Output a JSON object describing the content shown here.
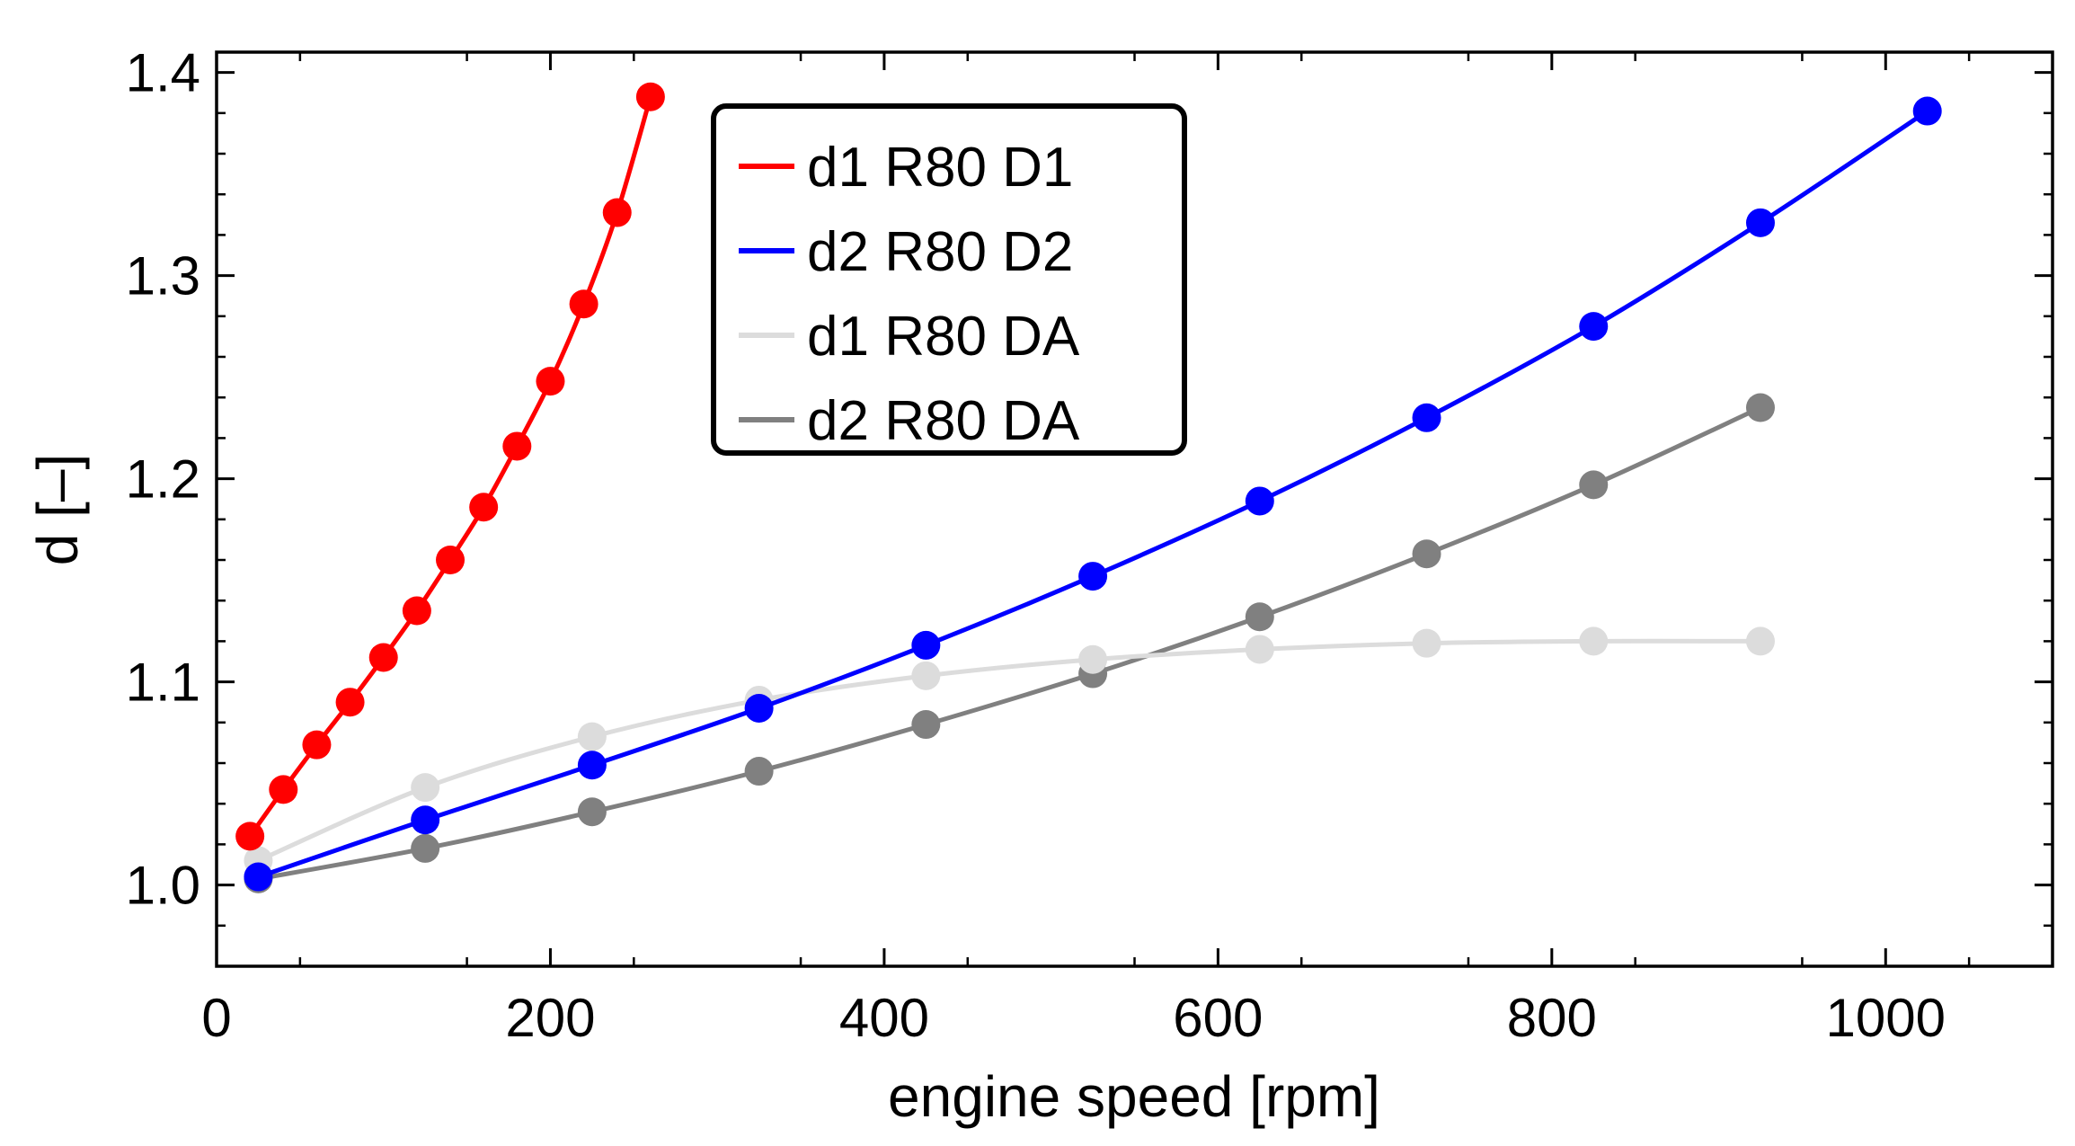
{
  "chart_data": {
    "type": "line",
    "title": "",
    "xlabel": "engine speed [rpm]",
    "ylabel": "d [–]",
    "xlim": [
      0,
      1100
    ],
    "ylim": [
      0.96,
      1.41
    ],
    "xticks": [
      0,
      200,
      400,
      600,
      800,
      1000
    ],
    "xtick_labels": [
      "0",
      "200",
      "400",
      "600",
      "800",
      "1000"
    ],
    "yticks": [
      1.0,
      1.1,
      1.2,
      1.3,
      1.4
    ],
    "ytick_labels": [
      "1.0",
      "1.1",
      "1.2",
      "1.3",
      "1.4"
    ],
    "grid": false,
    "legend_position": "top-center",
    "series": [
      {
        "name": "d1 R80 D1",
        "color": "#ff0000",
        "x": [
          20,
          40,
          60,
          80,
          100,
          120,
          140,
          160,
          180,
          200,
          220,
          240,
          260
        ],
        "y": [
          1.024,
          1.047,
          1.069,
          1.09,
          1.112,
          1.135,
          1.16,
          1.186,
          1.216,
          1.248,
          1.286,
          1.331,
          1.388
        ]
      },
      {
        "name": "d2 R80 D2",
        "color": "#0000ff",
        "x": [
          25,
          125,
          225,
          325,
          425,
          525,
          625,
          725,
          825,
          925,
          1025
        ],
        "y": [
          1.004,
          1.032,
          1.059,
          1.087,
          1.118,
          1.152,
          1.189,
          1.23,
          1.275,
          1.326,
          1.381
        ]
      },
      {
        "name": "d1 R80 DA",
        "color": "#dcdcdc",
        "x": [
          25,
          125,
          225,
          325,
          425,
          525,
          625,
          725,
          825,
          925
        ],
        "y": [
          1.012,
          1.048,
          1.073,
          1.091,
          1.103,
          1.111,
          1.116,
          1.119,
          1.12,
          1.12
        ]
      },
      {
        "name": "d2 R80 DA",
        "color": "#808080",
        "x": [
          25,
          125,
          225,
          325,
          425,
          525,
          625,
          725,
          825,
          925
        ],
        "y": [
          1.003,
          1.018,
          1.036,
          1.056,
          1.079,
          1.104,
          1.132,
          1.163,
          1.197,
          1.235
        ]
      }
    ]
  }
}
